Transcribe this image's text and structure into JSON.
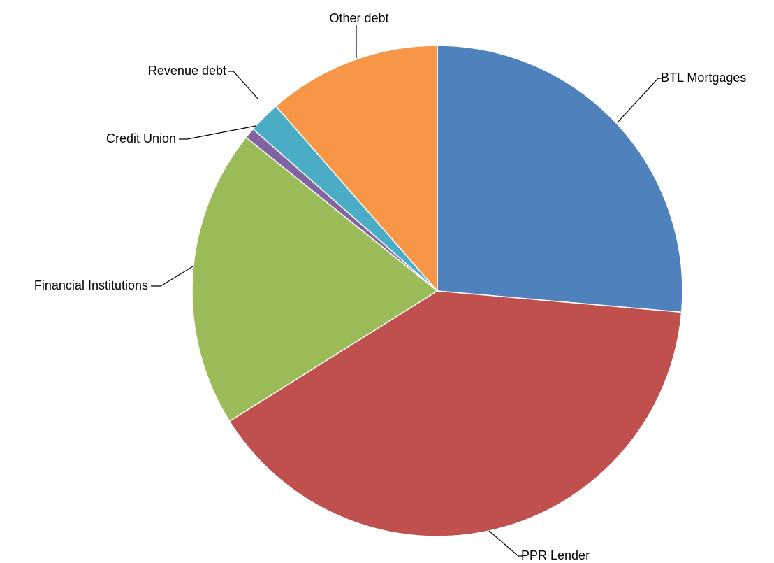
{
  "chart_data": {
    "type": "pie",
    "start_angle_deg": 0,
    "direction": "clockwise",
    "slices": [
      {
        "label": "BTL Mortgages",
        "value": 26.3,
        "color": "#4F81BD"
      },
      {
        "label": "PPR Lender",
        "value": 39.6,
        "color": "#C0504D"
      },
      {
        "label": "Financial Institutions",
        "value": 19.6,
        "color": "#9BBB59"
      },
      {
        "label": "Credit Union",
        "value": 0.7,
        "color": "#8064A2"
      },
      {
        "label": "Revenue debt",
        "value": 2.1,
        "color": "#4BACC6"
      },
      {
        "label": "Other debt",
        "value": 11.4,
        "color": "#F79646"
      }
    ],
    "legend": "none",
    "data_labels": "category names with leader lines"
  }
}
